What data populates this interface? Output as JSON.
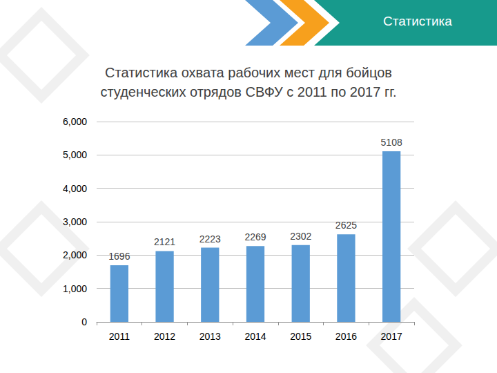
{
  "slide": {
    "header": "Статистика"
  },
  "chart_data": {
    "type": "bar",
    "title": "Статистика охвата рабочих мест для бойцов\nстуденческих отрядов СВФУ с 2011 по 2017 гг.",
    "categories": [
      "2011",
      "2012",
      "2013",
      "2014",
      "2015",
      "2016",
      "2017"
    ],
    "values": [
      1696,
      2121,
      2223,
      2269,
      2302,
      2625,
      5108
    ],
    "color": "#5b9bd5",
    "ylim": [
      0,
      6000
    ],
    "yticks": [
      0,
      1000,
      2000,
      3000,
      4000,
      5000,
      6000
    ],
    "grid": true,
    "data_labels": true
  }
}
